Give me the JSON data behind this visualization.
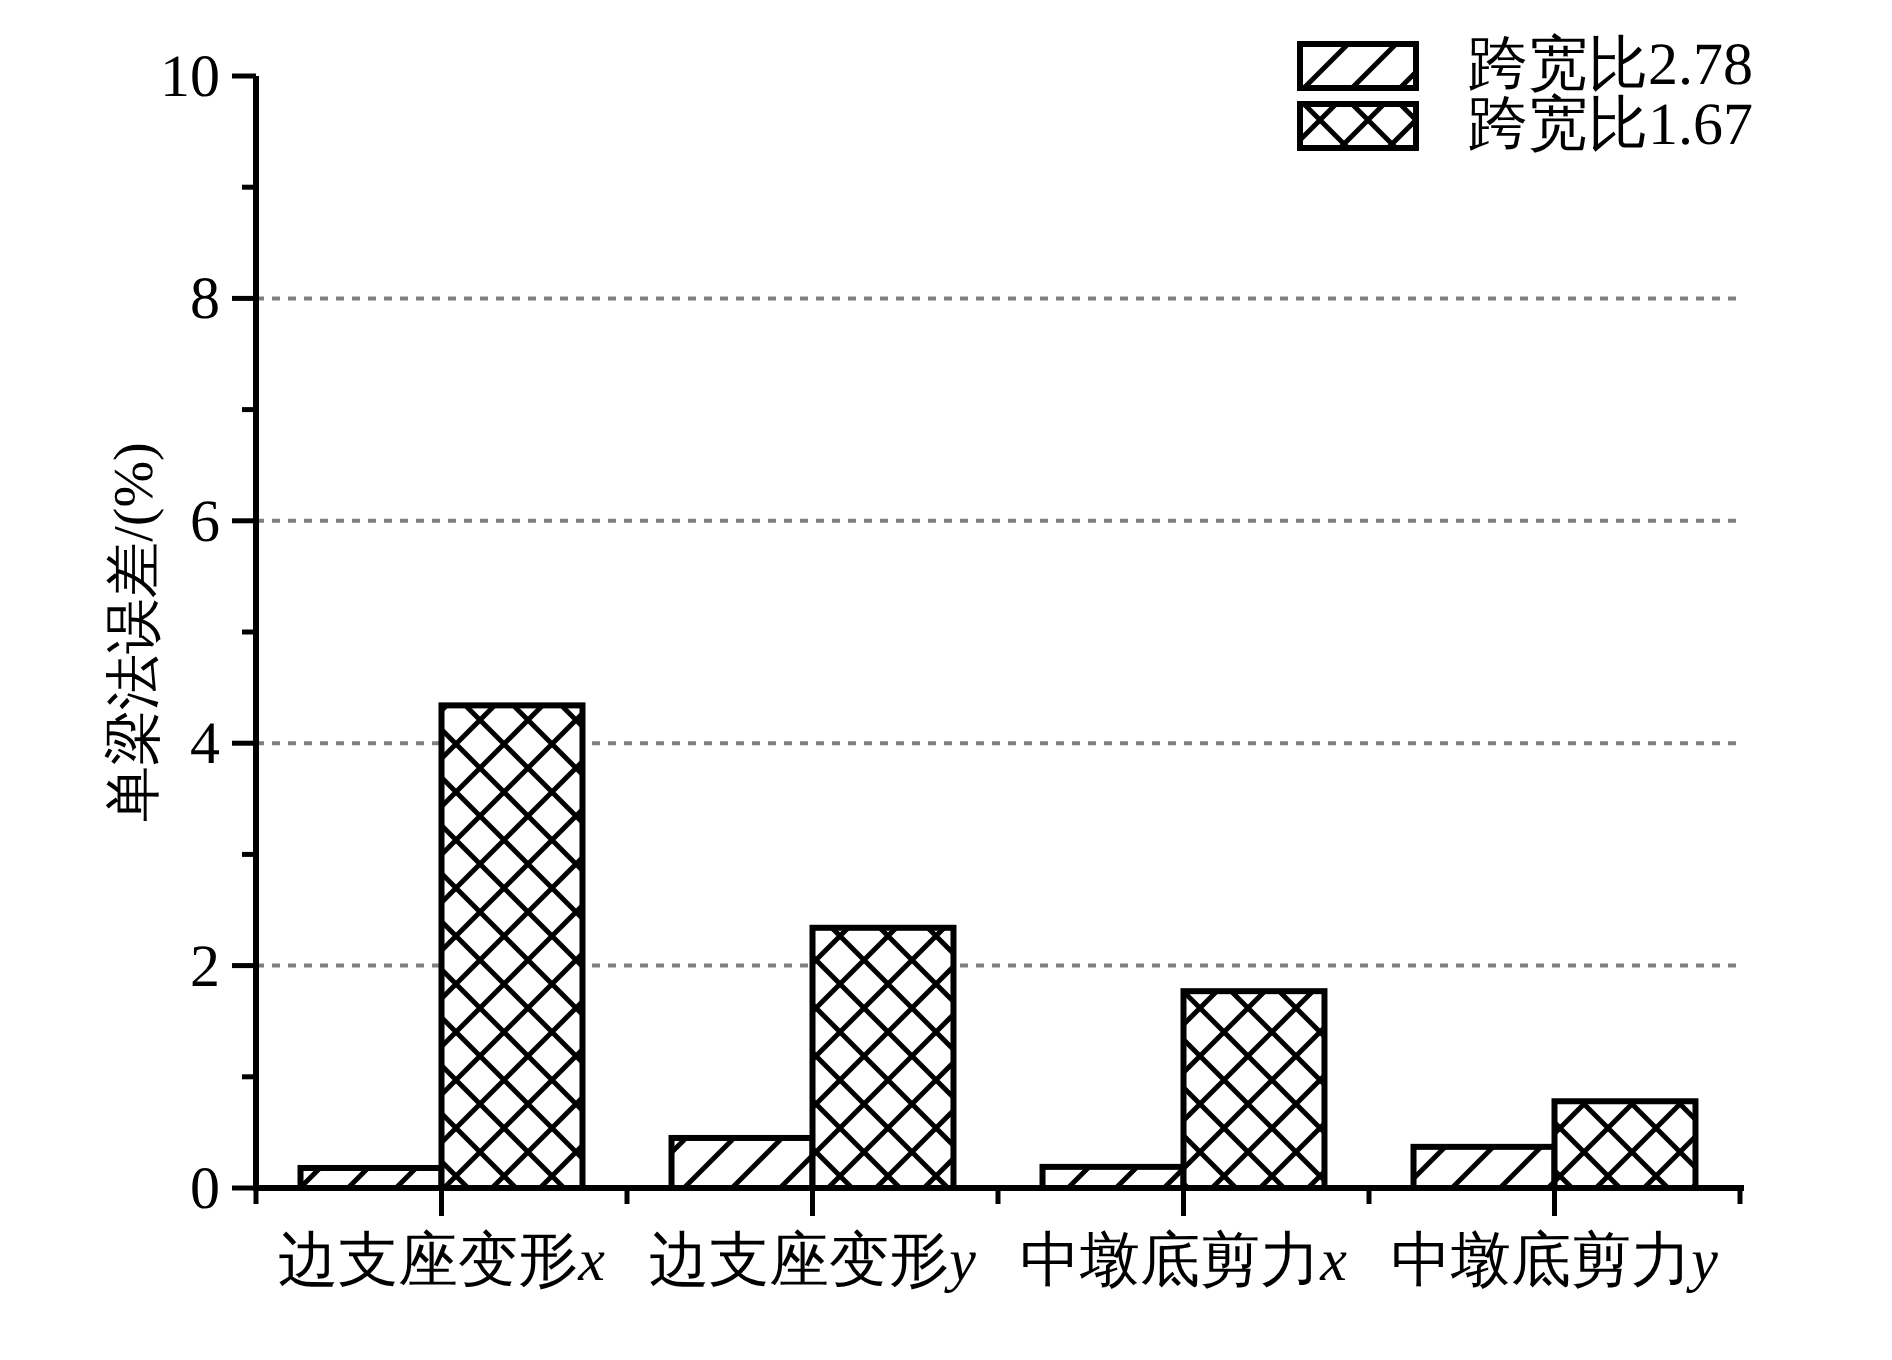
{
  "chart_data": {
    "type": "bar",
    "ylabel": "单梁法误差/(%)",
    "categories": [
      "边支座变形x",
      "边支座变形y",
      "中墩底剪力x",
      "中墩底剪力y"
    ],
    "series": [
      {
        "name": "跨宽比2.78",
        "color": "#000000",
        "values": [
          0.18,
          0.45,
          0.19,
          0.37
        ]
      },
      {
        "name": "跨宽比1.67",
        "color": "#000000",
        "values": [
          4.34,
          2.34,
          1.77,
          0.78
        ]
      }
    ],
    "ylim": [
      0,
      10
    ],
    "yticks": [
      0,
      {
        "value": 1,
        "label": null
      },
      2,
      {
        "value": 3,
        "label": null
      },
      4,
      {
        "value": 5,
        "label": null
      },
      6,
      {
        "value": 7,
        "label": null
      },
      8,
      {
        "value": 9,
        "label": null
      },
      10
    ],
    "grid": "y",
    "legend": "top right"
  }
}
